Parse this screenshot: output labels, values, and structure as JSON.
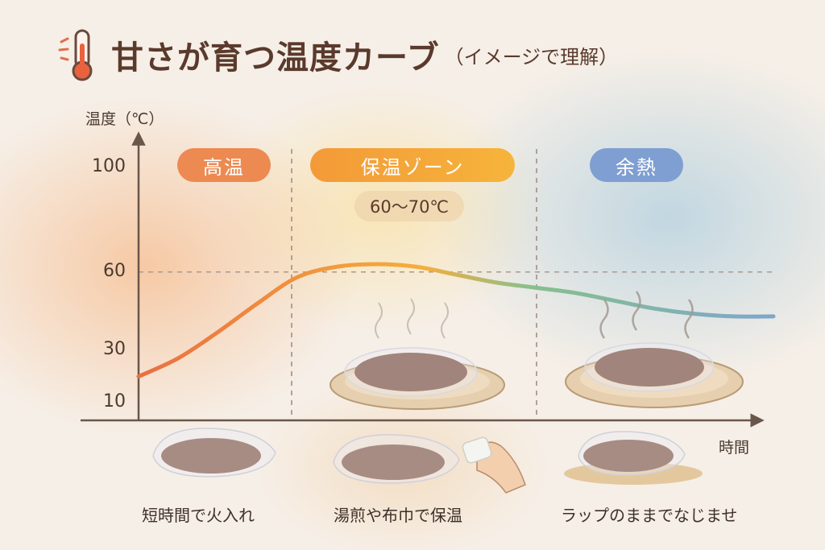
{
  "title": "甘さが育つ温度カーブ",
  "subtitle": "（イメージで理解）",
  "icons": {
    "title_icon": "thermometer-icon"
  },
  "chart_data": {
    "type": "line",
    "ylabel": "温度（℃）",
    "xlabel": "時間",
    "y_ticks": [
      "100",
      "60",
      "30",
      "10"
    ],
    "y_tick_values": [
      100,
      60,
      30,
      10
    ],
    "ylim": [
      0,
      110
    ],
    "reference_lines": [
      60
    ],
    "grid": false,
    "series": [
      {
        "values": [
          20,
          27,
          37,
          48,
          58,
          62,
          63,
          62,
          59,
          56,
          54,
          52,
          49,
          46,
          44,
          43,
          43
        ]
      }
    ],
    "colors": {
      "start": "#ea6f42",
      "mid": "#f5ae3c",
      "mid2": "#86c08c",
      "end": "#7ea6cc"
    }
  },
  "phases": [
    {
      "label": "高温",
      "color": "#ec8a52"
    },
    {
      "label": "保温ゾーン",
      "color": "#f4a33a"
    },
    {
      "label": "余熱",
      "color": "#7f9fd2"
    }
  ],
  "temp_badge": "60〜70℃",
  "captions": [
    "短時間で火入れ",
    "湯煎や布巾で保温",
    "ラップのままでなじませ"
  ]
}
